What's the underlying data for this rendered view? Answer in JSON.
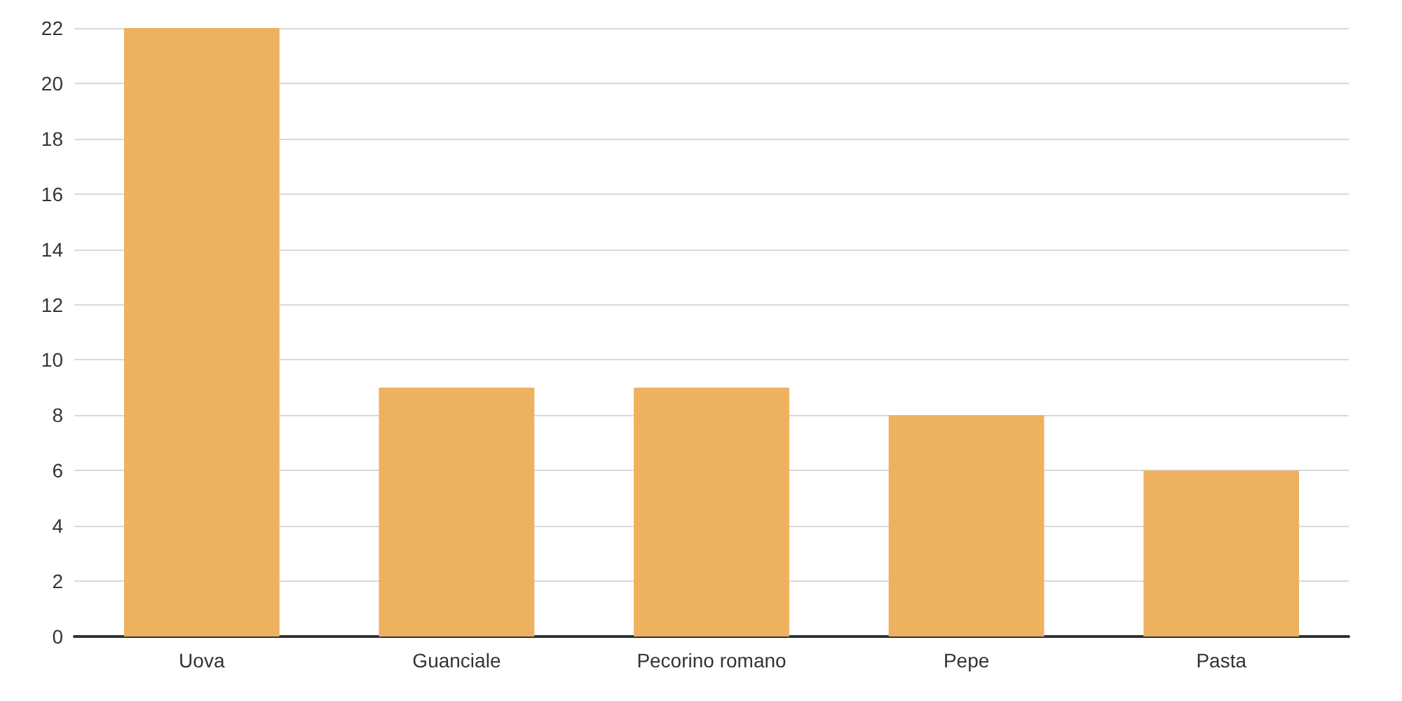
{
  "chart_data": {
    "type": "bar",
    "categories": [
      "Uova",
      "Guanciale",
      "Pecorino romano",
      "Pepe",
      "Pasta"
    ],
    "values": [
      22,
      9,
      9,
      8,
      6
    ],
    "color": "#eeb160",
    "ylim": [
      0,
      22
    ],
    "yticks": [
      0,
      2,
      4,
      6,
      8,
      10,
      12,
      14,
      16,
      18,
      20,
      22
    ],
    "grid": "y"
  }
}
